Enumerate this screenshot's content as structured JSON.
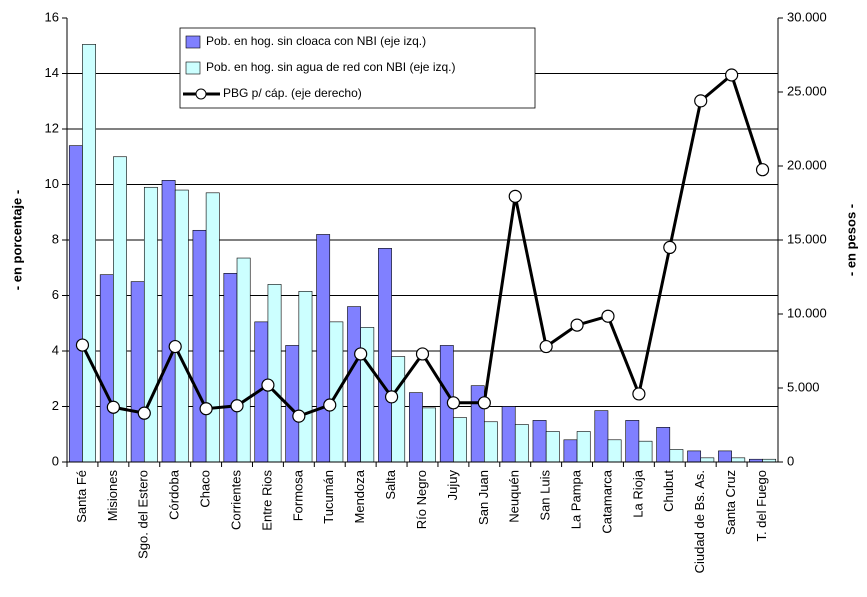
{
  "chart_data": {
    "type": "bar-line",
    "categories": [
      "Santa Fé",
      "Misiones",
      "Sgo. del Estero",
      "Córdoba",
      "Chaco",
      "Corrientes",
      "Entre Rios",
      "Formosa",
      "Tucumán",
      "Mendoza",
      "Salta",
      "Río Negro",
      "Jujuy",
      "San Juan",
      "Neuquén",
      "San Luis",
      "La Pampa",
      "Catamarca",
      "La Rioja",
      "Chubut",
      "Ciudad de Bs. As.",
      "Santa Cruz",
      "T. del Fuego"
    ],
    "series": [
      {
        "name": "Pob. en hog. sin cloaca con NBI (eje izq.)",
        "color": "#8080ff",
        "type": "bar",
        "values": [
          11.4,
          6.75,
          6.5,
          10.15,
          8.35,
          6.8,
          5.05,
          4.2,
          8.2,
          5.6,
          7.7,
          2.5,
          4.2,
          2.75,
          2.0,
          1.5,
          0.8,
          1.85,
          1.5,
          1.25,
          0.4,
          0.4,
          0.1
        ]
      },
      {
        "name": "Pob. en hog. sin agua de red con NBI (eje izq.)",
        "color": "#ccffff",
        "type": "bar",
        "values": [
          15.05,
          11.0,
          9.9,
          9.8,
          9.7,
          7.35,
          6.4,
          6.15,
          5.05,
          4.85,
          3.8,
          1.95,
          1.6,
          1.45,
          1.35,
          1.1,
          1.1,
          0.8,
          0.75,
          0.45,
          0.15,
          0.15,
          0.1
        ]
      },
      {
        "name": "PBG p/ cáp. (eje derecho)",
        "color": "#000000",
        "type": "line",
        "axis": "y2",
        "values": [
          7900,
          3700,
          3300,
          7800,
          3600,
          3800,
          5200,
          3100,
          3850,
          7300,
          4400,
          7300,
          4000,
          4000,
          17950,
          7800,
          9250,
          9850,
          4600,
          14500,
          24400,
          26150,
          19750
        ]
      }
    ],
    "ylabel": "- en porcentaje -",
    "y2label": "- en pesos -",
    "ylim": [
      0,
      16
    ],
    "yticks": [
      0,
      2,
      4,
      6,
      8,
      10,
      12,
      14,
      16
    ],
    "y2lim": [
      0,
      30000
    ],
    "y2ticks": [
      0,
      {
        "value": 5000,
        "label": "5.000"
      },
      {
        "value": 10000,
        "label": "10.000"
      },
      {
        "value": 15000,
        "label": "15.000"
      },
      {
        "value": 20000,
        "label": "20.000"
      },
      {
        "value": 25000,
        "label": "25.000"
      },
      {
        "value": 30000,
        "label": "30.000"
      }
    ],
    "grid": true,
    "legend": "top"
  }
}
